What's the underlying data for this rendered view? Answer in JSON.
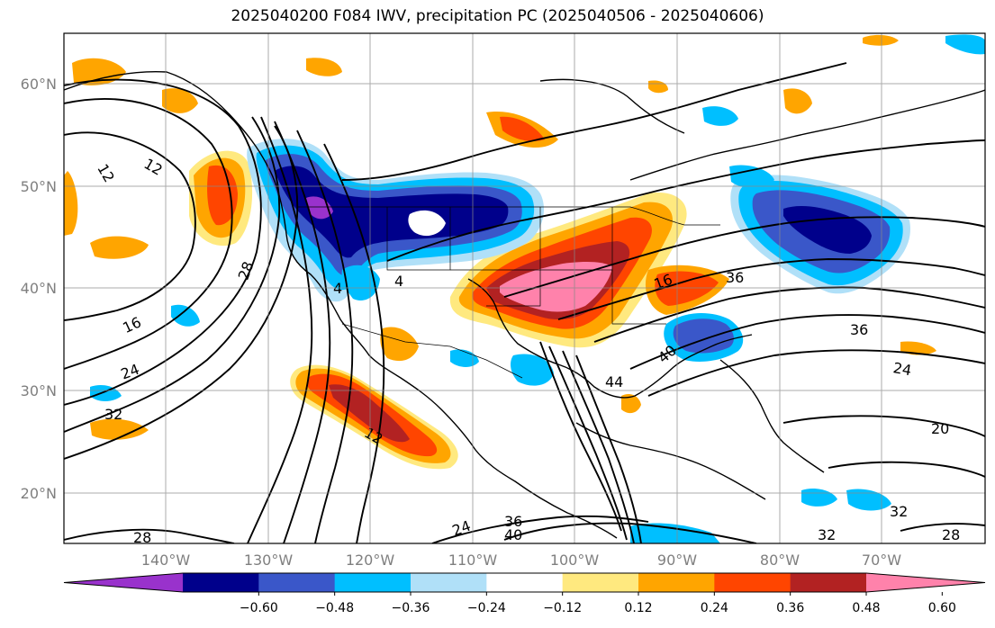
{
  "title": "2025040200 F084 IWV, precipitation PC (2025040506 - 2025040606)",
  "axes": {
    "lat_ticks": [
      "60°N",
      "50°N",
      "40°N",
      "30°N",
      "20°N"
    ],
    "lon_ticks": [
      "140°W",
      "130°W",
      "120°W",
      "110°W",
      "100°W",
      "90°W",
      "80°W",
      "70°W"
    ],
    "grid": true
  },
  "colorbar": {
    "ticks": [
      "−0.60",
      "−0.48",
      "−0.36",
      "−0.24",
      "−0.12",
      "0.12",
      "0.24",
      "0.36",
      "0.48",
      "0.60"
    ],
    "colors": [
      "#9932cc",
      "#00008b",
      "#3a57c9",
      "#00bfff",
      "#b0e0f8",
      "#ffffff",
      "#ffe97f",
      "#ffa500",
      "#ff4500",
      "#b22222",
      "#ff82ab"
    ],
    "extend": "both"
  },
  "contour_labels": [
    "12",
    "12",
    "28",
    "16",
    "24",
    "32",
    "28",
    "12",
    "4",
    "4",
    "16",
    "36",
    "36",
    "40",
    "44",
    "24",
    "20",
    "24",
    "36",
    "40",
    "32",
    "32",
    "28"
  ]
}
